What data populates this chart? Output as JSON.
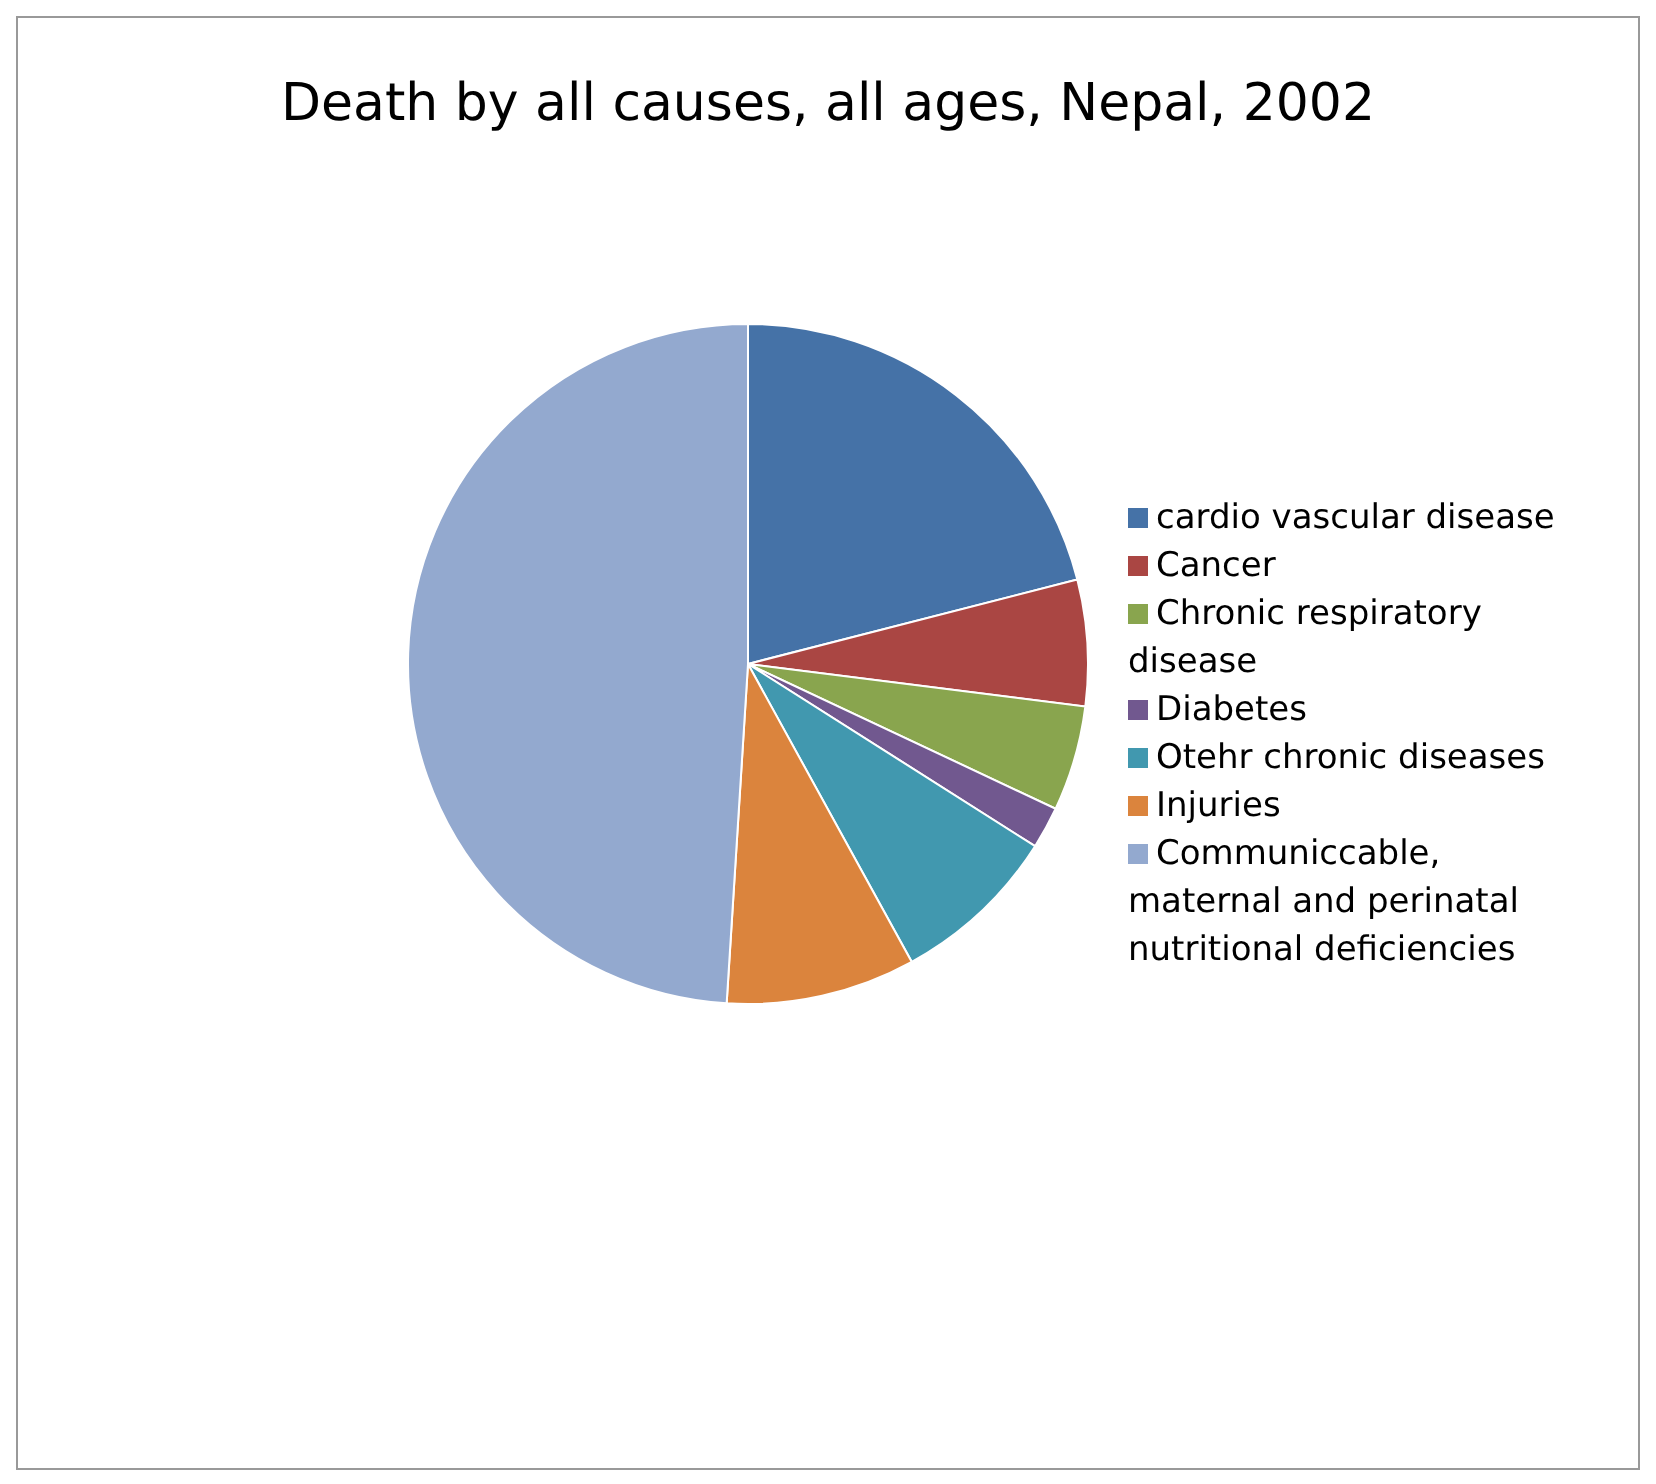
{
  "chart_data": {
    "type": "pie",
    "title": "Death by all causes, all ages, Nepal, 2002",
    "categories": [
      "cardio vascular disease",
      "Cancer",
      "Chronic respiratory disease",
      "Diabetes",
      "Otehr chronic diseases",
      "Injuries",
      "Communiccable, maternal and perinatal nutritional deficiencies"
    ],
    "values": [
      21,
      6,
      5,
      2,
      8,
      9,
      49
    ],
    "colors": [
      "#4572a7",
      "#aa4643",
      "#89a54e",
      "#71588f",
      "#4198af",
      "#db843d",
      "#93a9cf"
    ],
    "legend": "right"
  }
}
